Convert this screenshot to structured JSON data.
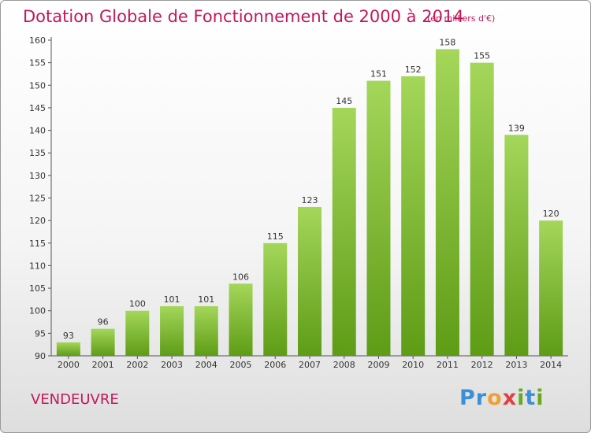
{
  "header": {
    "title": "Dotation Globale de Fonctionnement de 2000 à 2014",
    "unit_note": "(en milliers d'€)"
  },
  "footer": {
    "commune": "VENDEUVRE",
    "brand_letters": [
      {
        "char": "P",
        "color": "#3a8fd8"
      },
      {
        "char": "r",
        "color": "#3a8fd8"
      },
      {
        "char": "o",
        "color": "#f0a030"
      },
      {
        "char": "x",
        "color": "#e04040"
      },
      {
        "char": "i",
        "color": "#66aa22"
      },
      {
        "char": "t",
        "color": "#3a8fd8"
      },
      {
        "char": "i",
        "color": "#66aa22"
      }
    ]
  },
  "chart_data": {
    "type": "bar",
    "title": "Dotation Globale de Fonctionnement de 2000 à 2014",
    "subtitle": "(en milliers d'€)",
    "xlabel": "",
    "ylabel": "",
    "categories": [
      "2000",
      "2001",
      "2002",
      "2003",
      "2004",
      "2005",
      "2006",
      "2007",
      "2008",
      "2009",
      "2010",
      "2011",
      "2012",
      "2013",
      "2014"
    ],
    "values": [
      93,
      96,
      100,
      101,
      101,
      106,
      115,
      123,
      145,
      151,
      152,
      158,
      155,
      139,
      120
    ],
    "ylim": [
      90,
      160
    ],
    "yticks": [
      90,
      95,
      100,
      105,
      110,
      115,
      120,
      125,
      130,
      135,
      140,
      145,
      150,
      155,
      160
    ],
    "grid": false,
    "data_labels": true,
    "bar_color": "#7fbf2a",
    "bar_color_light": "#a4d65a",
    "bar_color_dark": "#5e9c16"
  }
}
